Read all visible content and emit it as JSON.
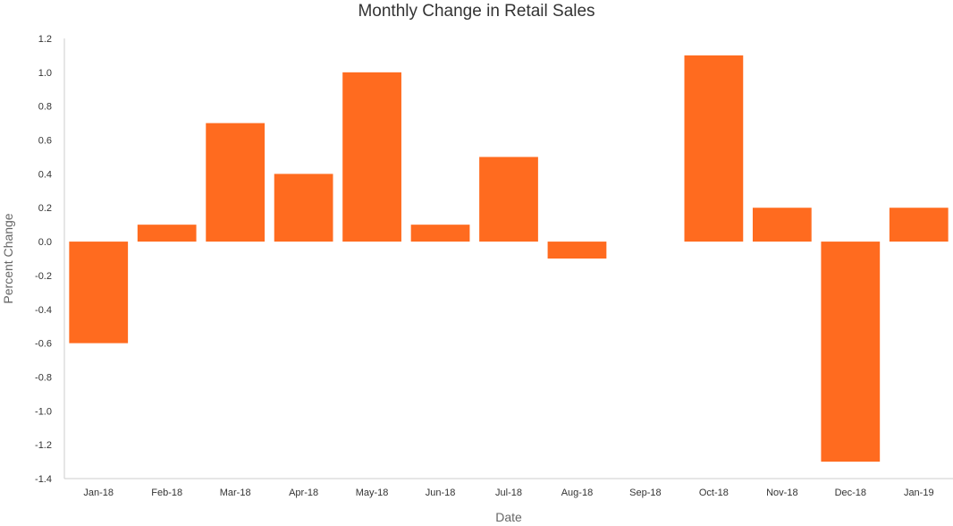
{
  "chart_data": {
    "type": "bar",
    "title": "Monthly Change in Retail Sales",
    "xlabel": "Date",
    "ylabel": "Percent Change",
    "categories": [
      "Jan-18",
      "Feb-18",
      "Mar-18",
      "Apr-18",
      "May-18",
      "Jun-18",
      "Jul-18",
      "Aug-18",
      "Sep-18",
      "Oct-18",
      "Nov-18",
      "Dec-18",
      "Jan-19"
    ],
    "values": [
      -0.6,
      0.1,
      0.7,
      0.4,
      1.0,
      0.1,
      0.5,
      -0.1,
      0.0,
      1.1,
      0.2,
      -1.3,
      0.2
    ],
    "ylim": [
      -1.4,
      1.2
    ],
    "yticks": [
      "1.2",
      "1.0",
      "0.8",
      "0.6",
      "0.4",
      "0.2",
      "0.0",
      "-0.2",
      "-0.4",
      "-0.6",
      "-0.8",
      "-1.0",
      "-1.2",
      "-1.4"
    ],
    "grid": false,
    "bar_color": "#ff6b1f"
  }
}
